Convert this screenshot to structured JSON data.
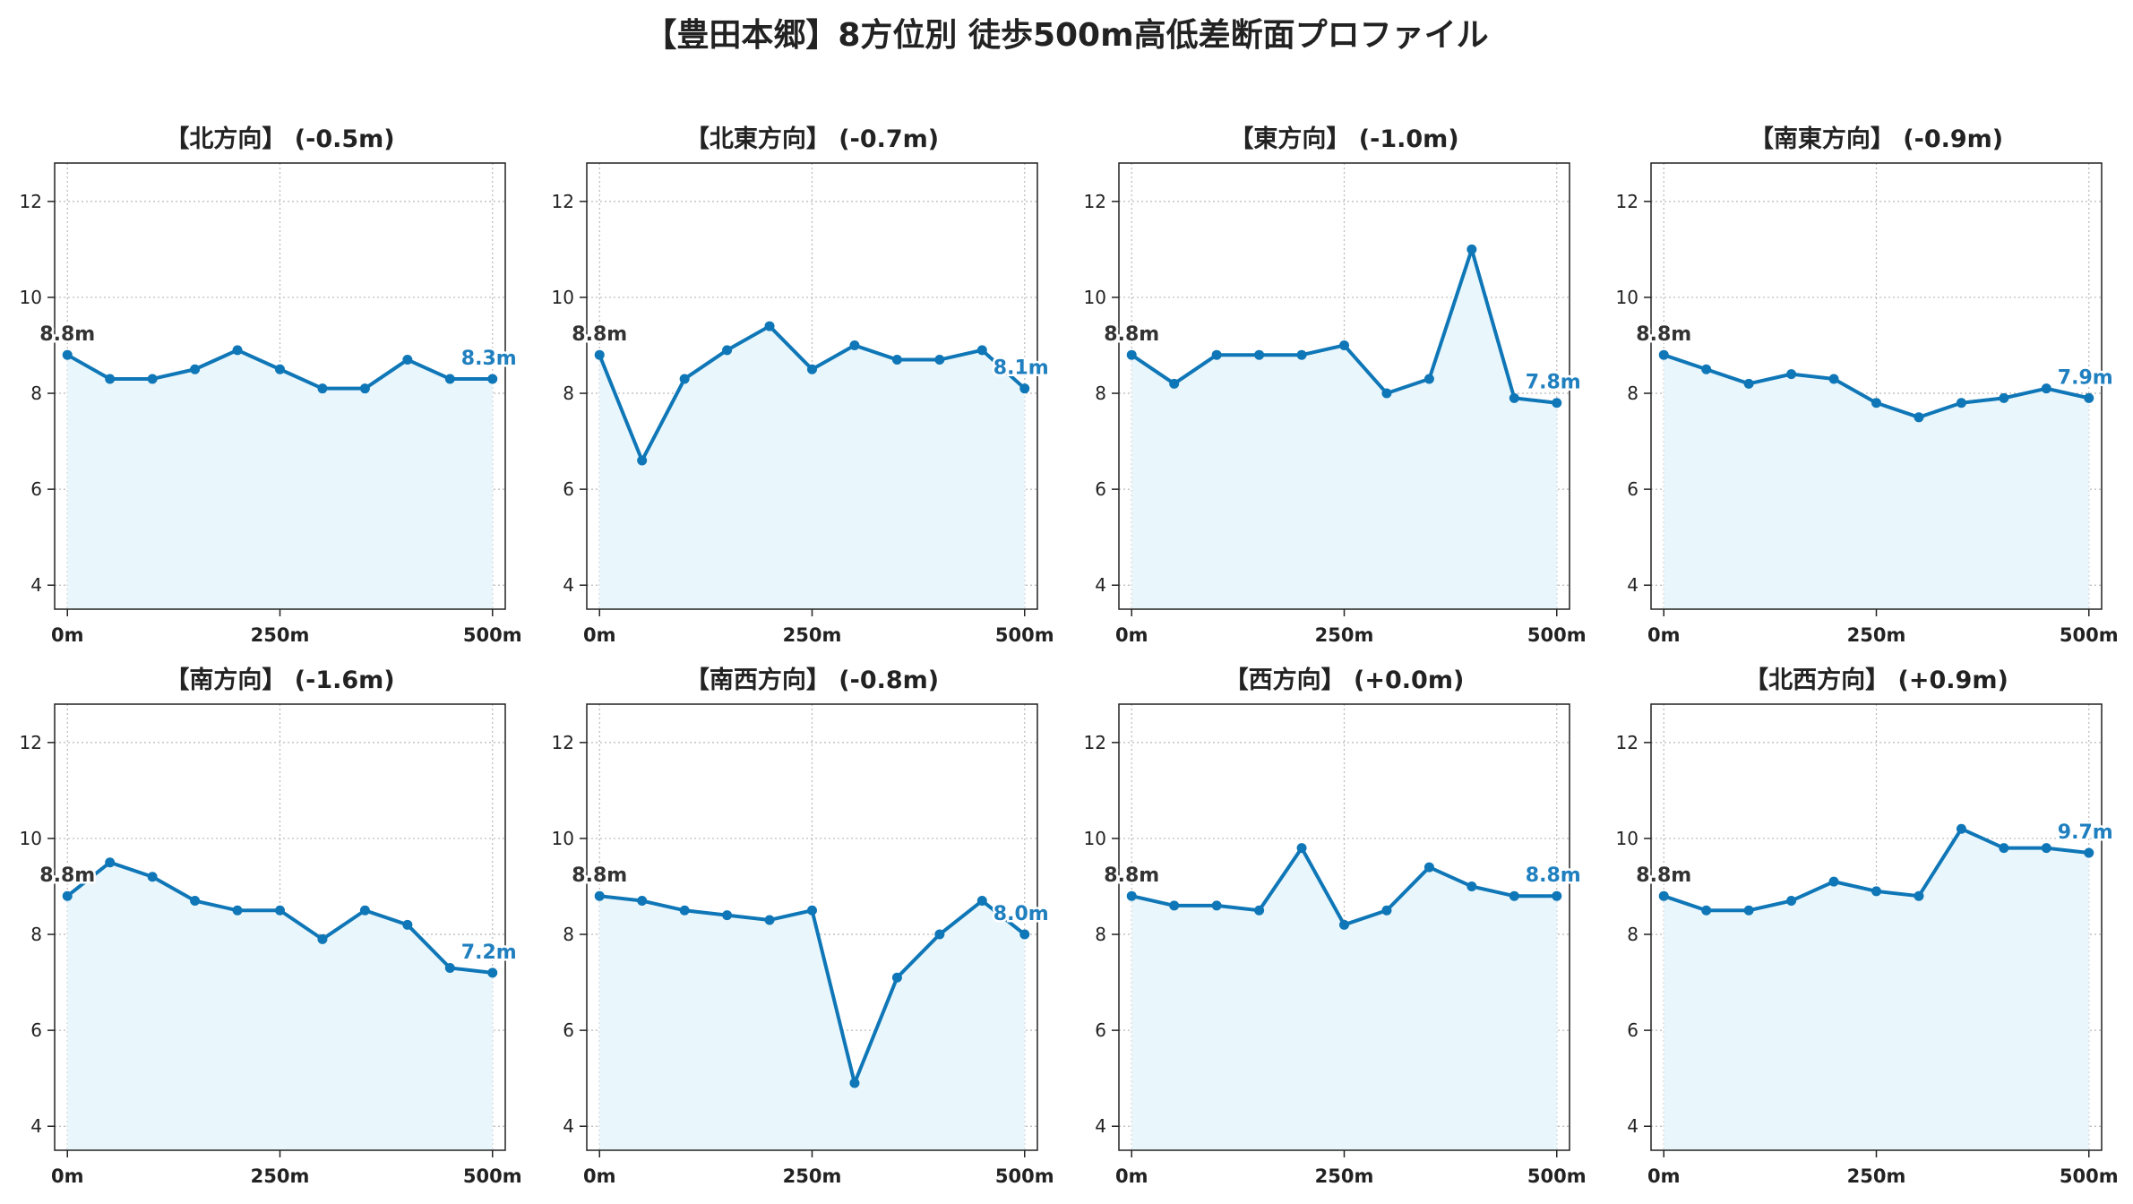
{
  "figure": {
    "title": "【豊田本郷】8方位別 徒歩500m高低差断面プロファイル"
  },
  "style": {
    "line_color": "#0f77b7",
    "fill_color": "#e9f6fb",
    "grid_color": "#b8b8b8",
    "start_label_color": "#333333",
    "end_label_color": "#1f7fbf"
  },
  "chart_data": [
    {
      "type": "line",
      "title": "【北方向】 (-0.5m)",
      "x": [
        0,
        50,
        100,
        150,
        200,
        250,
        300,
        350,
        400,
        450,
        500
      ],
      "values": [
        8.8,
        8.3,
        8.3,
        8.5,
        8.9,
        8.5,
        8.1,
        8.1,
        8.7,
        8.3,
        8.3
      ],
      "start_label": "8.8m",
      "end_label": "8.3m",
      "xticks": [
        "0m",
        "250m",
        "500m"
      ],
      "yticks": [
        "4",
        "6",
        "8",
        "10",
        "12"
      ],
      "xlim": [
        -15,
        515
      ],
      "ylim": [
        3.5,
        12.8
      ],
      "grid": true
    },
    {
      "type": "line",
      "title": "【北東方向】 (-0.7m)",
      "x": [
        0,
        50,
        100,
        150,
        200,
        250,
        300,
        350,
        400,
        450,
        500
      ],
      "values": [
        8.8,
        6.6,
        8.3,
        8.9,
        9.4,
        8.5,
        9.0,
        8.7,
        8.7,
        8.9,
        8.1
      ],
      "start_label": "8.8m",
      "end_label": "8.1m",
      "xticks": [
        "0m",
        "250m",
        "500m"
      ],
      "yticks": [
        "4",
        "6",
        "8",
        "10",
        "12"
      ],
      "xlim": [
        -15,
        515
      ],
      "ylim": [
        3.5,
        12.8
      ],
      "grid": true
    },
    {
      "type": "line",
      "title": "【東方向】 (-1.0m)",
      "x": [
        0,
        50,
        100,
        150,
        200,
        250,
        300,
        350,
        400,
        450,
        500
      ],
      "values": [
        8.8,
        8.2,
        8.8,
        8.8,
        8.8,
        9.0,
        8.0,
        8.3,
        11.0,
        7.9,
        7.8
      ],
      "start_label": "8.8m",
      "end_label": "7.8m",
      "xticks": [
        "0m",
        "250m",
        "500m"
      ],
      "yticks": [
        "4",
        "6",
        "8",
        "10",
        "12"
      ],
      "xlim": [
        -15,
        515
      ],
      "ylim": [
        3.5,
        12.8
      ],
      "grid": true
    },
    {
      "type": "line",
      "title": "【南東方向】 (-0.9m)",
      "x": [
        0,
        50,
        100,
        150,
        200,
        250,
        300,
        350,
        400,
        450,
        500
      ],
      "values": [
        8.8,
        8.5,
        8.2,
        8.4,
        8.3,
        7.8,
        7.5,
        7.8,
        7.9,
        8.1,
        7.9
      ],
      "start_label": "8.8m",
      "end_label": "7.9m",
      "xticks": [
        "0m",
        "250m",
        "500m"
      ],
      "yticks": [
        "4",
        "6",
        "8",
        "10",
        "12"
      ],
      "xlim": [
        -15,
        515
      ],
      "ylim": [
        3.5,
        12.8
      ],
      "grid": true
    },
    {
      "type": "line",
      "title": "【南方向】 (-1.6m)",
      "x": [
        0,
        50,
        100,
        150,
        200,
        250,
        300,
        350,
        400,
        450,
        500
      ],
      "values": [
        8.8,
        9.5,
        9.2,
        8.7,
        8.5,
        8.5,
        7.9,
        8.5,
        8.2,
        7.3,
        7.2
      ],
      "start_label": "8.8m",
      "end_label": "7.2m",
      "xticks": [
        "0m",
        "250m",
        "500m"
      ],
      "yticks": [
        "4",
        "6",
        "8",
        "10",
        "12"
      ],
      "xlim": [
        -15,
        515
      ],
      "ylim": [
        3.5,
        12.8
      ],
      "grid": true
    },
    {
      "type": "line",
      "title": "【南西方向】 (-0.8m)",
      "x": [
        0,
        50,
        100,
        150,
        200,
        250,
        300,
        350,
        400,
        450,
        500
      ],
      "values": [
        8.8,
        8.7,
        8.5,
        8.4,
        8.3,
        8.5,
        4.9,
        7.1,
        8.0,
        8.7,
        8.0
      ],
      "start_label": "8.8m",
      "end_label": "8.0m",
      "xticks": [
        "0m",
        "250m",
        "500m"
      ],
      "yticks": [
        "4",
        "6",
        "8",
        "10",
        "12"
      ],
      "xlim": [
        -15,
        515
      ],
      "ylim": [
        3.5,
        12.8
      ],
      "grid": true
    },
    {
      "type": "line",
      "title": "【西方向】 (+0.0m)",
      "x": [
        0,
        50,
        100,
        150,
        200,
        250,
        300,
        350,
        400,
        450,
        500
      ],
      "values": [
        8.8,
        8.6,
        8.6,
        8.5,
        9.8,
        8.2,
        8.5,
        9.4,
        9.0,
        8.8,
        8.8
      ],
      "start_label": "8.8m",
      "end_label": "8.8m",
      "xticks": [
        "0m",
        "250m",
        "500m"
      ],
      "yticks": [
        "4",
        "6",
        "8",
        "10",
        "12"
      ],
      "xlim": [
        -15,
        515
      ],
      "ylim": [
        3.5,
        12.8
      ],
      "grid": true
    },
    {
      "type": "line",
      "title": "【北西方向】 (+0.9m)",
      "x": [
        0,
        50,
        100,
        150,
        200,
        250,
        300,
        350,
        400,
        450,
        500
      ],
      "values": [
        8.8,
        8.5,
        8.5,
        8.7,
        9.1,
        8.9,
        8.8,
        10.2,
        9.8,
        9.8,
        9.7
      ],
      "start_label": "8.8m",
      "end_label": "9.7m",
      "xticks": [
        "0m",
        "250m",
        "500m"
      ],
      "yticks": [
        "4",
        "6",
        "8",
        "10",
        "12"
      ],
      "xlim": [
        -15,
        515
      ],
      "ylim": [
        3.5,
        12.8
      ],
      "grid": true
    }
  ]
}
